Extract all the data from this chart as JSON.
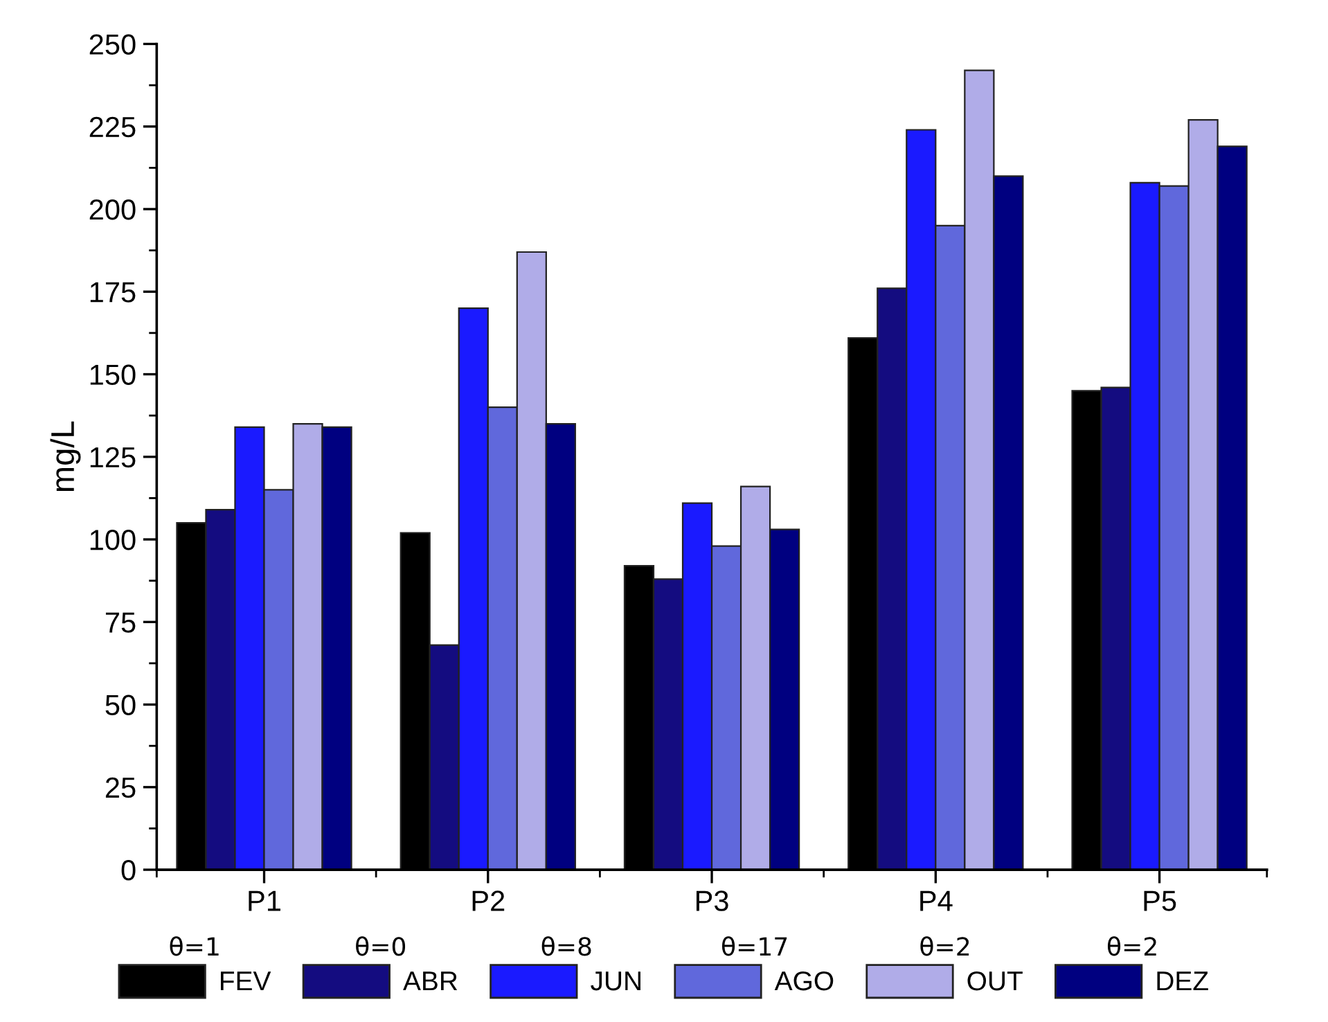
{
  "chart_data": {
    "type": "bar",
    "ylabel": "mg/L",
    "categories": [
      "P1",
      "P2",
      "P3",
      "P4",
      "P5"
    ],
    "series": [
      {
        "name": "FEV",
        "color": "#000000",
        "values": [
          105,
          102,
          92,
          161,
          145
        ]
      },
      {
        "name": "ABR",
        "color": "#140c80",
        "values": [
          109,
          68,
          88,
          176,
          146
        ]
      },
      {
        "name": "JUN",
        "color": "#1a1aff",
        "values": [
          134,
          170,
          111,
          224,
          208
        ]
      },
      {
        "name": "AGO",
        "color": "#6068dc",
        "values": [
          115,
          140,
          98,
          195,
          207
        ]
      },
      {
        "name": "OUT",
        "color": "#b0ace8",
        "values": [
          135,
          187,
          116,
          242,
          227
        ]
      },
      {
        "name": "DEZ",
        "color": "#000080",
        "values": [
          134,
          135,
          103,
          210,
          219
        ]
      }
    ],
    "annotations": [
      "θ=1",
      "θ=0",
      "θ=8",
      "θ=17",
      "θ=2",
      "θ=2"
    ],
    "ylim": [
      0,
      250
    ],
    "yticks": [
      0,
      25,
      50,
      75,
      100,
      125,
      150,
      175,
      200,
      225,
      250
    ],
    "grid": false,
    "legend": "bottom"
  }
}
